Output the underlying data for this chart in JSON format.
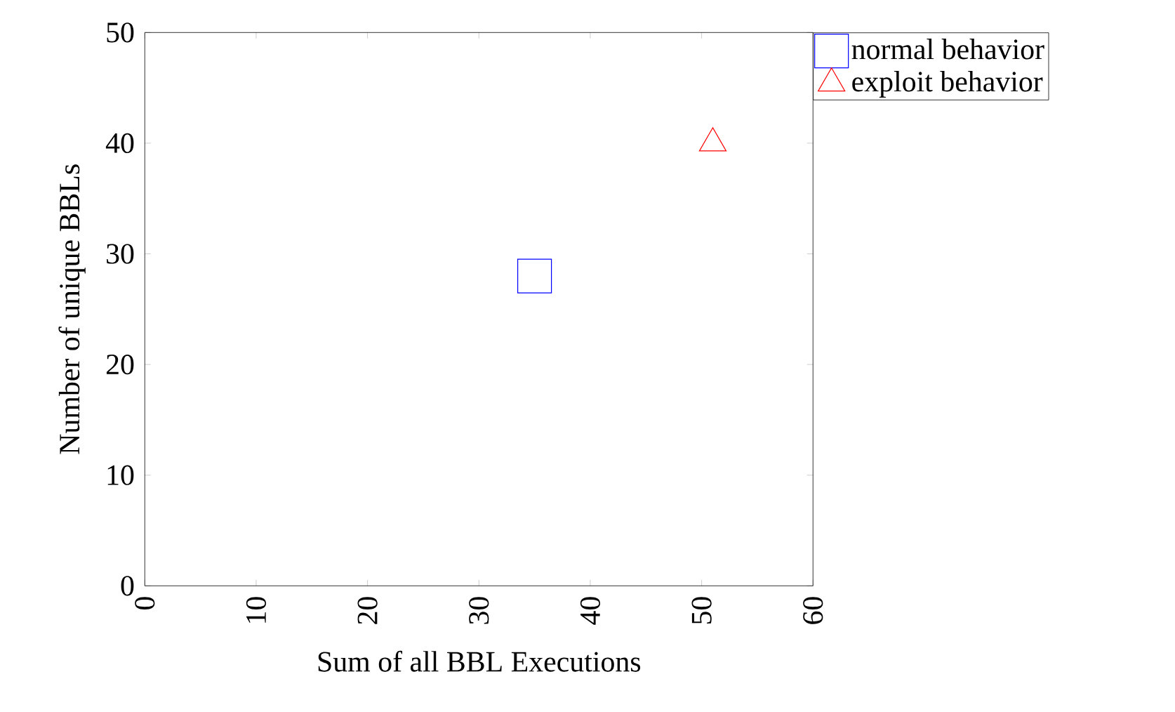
{
  "chart_data": {
    "type": "scatter",
    "xlabel": "Sum of all BBL Executions",
    "ylabel": "Number of unique BBLs",
    "xlim": [
      0,
      60
    ],
    "ylim": [
      0,
      50
    ],
    "xticks": [
      0,
      10,
      20,
      30,
      40,
      50,
      60
    ],
    "yticks": [
      0,
      10,
      20,
      30,
      40,
      50
    ],
    "legend": "top right",
    "grid": false,
    "series": [
      {
        "name": "normal behavior",
        "color": "#0000ff",
        "marker": "square",
        "x": [
          35
        ],
        "values": [
          28
        ]
      },
      {
        "name": "exploit behavior",
        "color": "#ff0000",
        "marker": "triangle",
        "x": [
          51
        ],
        "values": [
          40
        ]
      }
    ]
  }
}
